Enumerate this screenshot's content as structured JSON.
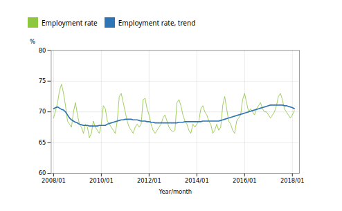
{
  "chart_data": {
    "type": "line",
    "xlabel": "Year/month",
    "ylabel": "%",
    "x": [
      2008,
      2008.0833333333333,
      2008.1666666666667,
      2008.25,
      2008.3333333333333,
      2008.4166666666667,
      2008.5,
      2008.5833333333333,
      2008.6666666666667,
      2008.75,
      2008.8333333333333,
      2008.9166666666667,
      2009,
      2009.0833333333333,
      2009.1666666666667,
      2009.25,
      2009.3333333333333,
      2009.4166666666667,
      2009.5,
      2009.5833333333333,
      2009.6666666666667,
      2009.75,
      2009.8333333333333,
      2009.9166666666667,
      2010,
      2010.0833333333333,
      2010.1666666666667,
      2010.25,
      2010.3333333333333,
      2010.4166666666667,
      2010.5,
      2010.5833333333333,
      2010.6666666666667,
      2010.75,
      2010.8333333333333,
      2010.9166666666667,
      2011,
      2011.0833333333333,
      2011.1666666666667,
      2011.25,
      2011.3333333333333,
      2011.4166666666667,
      2011.5,
      2011.5833333333333,
      2011.6666666666667,
      2011.75,
      2011.8333333333333,
      2011.9166666666667,
      2012,
      2012.0833333333333,
      2012.1666666666667,
      2012.25,
      2012.3333333333333,
      2012.4166666666667,
      2012.5,
      2012.5833333333333,
      2012.6666666666667,
      2012.75,
      2012.8333333333333,
      2012.9166666666667,
      2013,
      2013.0833333333333,
      2013.1666666666667,
      2013.25,
      2013.3333333333333,
      2013.4166666666667,
      2013.5,
      2013.5833333333333,
      2013.6666666666667,
      2013.75,
      2013.8333333333333,
      2013.9166666666667,
      2014,
      2014.0833333333333,
      2014.1666666666667,
      2014.25,
      2014.3333333333333,
      2014.4166666666667,
      2014.5,
      2014.5833333333333,
      2014.6666666666667,
      2014.75,
      2014.8333333333333,
      2014.9166666666667,
      2015,
      2015.0833333333333,
      2015.1666666666667,
      2015.25,
      2015.3333333333333,
      2015.4166666666667,
      2015.5,
      2015.5833333333333,
      2015.6666666666667,
      2015.75,
      2015.8333333333333,
      2015.9166666666667,
      2016,
      2016.0833333333333,
      2016.1666666666667,
      2016.25,
      2016.3333333333333,
      2016.4166666666667,
      2016.5,
      2016.5833333333333,
      2016.6666666666667,
      2016.75,
      2016.8333333333333,
      2016.9166666666667,
      2017,
      2017.0833333333333,
      2017.1666666666667,
      2017.25,
      2017.3333333333333,
      2017.4166666666667,
      2017.5,
      2017.5833333333333,
      2017.6666666666667,
      2017.75,
      2017.8333333333333,
      2017.9166666666667,
      2018,
      2018.0833333333333
    ],
    "series": [
      {
        "name": "Employment rate",
        "color": "#8dc63f",
        "values": [
          69.0,
          70.2,
          71.5,
          73.5,
          74.5,
          73.0,
          71.0,
          68.5,
          68.0,
          67.5,
          70.0,
          71.5,
          69.5,
          68.0,
          67.5,
          66.5,
          68.0,
          67.5,
          65.8,
          66.5,
          68.5,
          67.5,
          67.0,
          66.5,
          68.0,
          71.0,
          70.5,
          68.5,
          68.0,
          67.5,
          67.0,
          66.5,
          68.5,
          72.5,
          73.0,
          71.5,
          70.0,
          68.5,
          67.5,
          67.0,
          66.5,
          67.5,
          68.0,
          67.5,
          68.0,
          72.0,
          72.2,
          70.5,
          69.5,
          68.0,
          67.0,
          66.5,
          67.0,
          67.5,
          68.0,
          69.0,
          69.5,
          68.5,
          67.5,
          67.0,
          66.8,
          67.0,
          71.5,
          72.0,
          71.0,
          69.5,
          68.5,
          68.0,
          67.0,
          66.5,
          68.0,
          67.5,
          68.0,
          68.5,
          70.5,
          71.0,
          70.0,
          69.5,
          68.5,
          68.0,
          66.5,
          67.0,
          68.0,
          67.0,
          67.5,
          71.0,
          72.5,
          70.5,
          68.5,
          68.0,
          67.0,
          66.5,
          68.5,
          69.0,
          69.5,
          72.0,
          73.0,
          71.5,
          70.0,
          70.5,
          70.0,
          69.5,
          70.5,
          71.0,
          71.5,
          70.5,
          70.0,
          70.0,
          69.5,
          69.0,
          69.5,
          70.0,
          71.0,
          72.5,
          73.0,
          72.0,
          70.5,
          70.0,
          69.5,
          69.0,
          69.5,
          70.2
        ]
      },
      {
        "name": "Employment rate, trend",
        "color": "#2e75b6",
        "values": [
          70.5,
          70.7,
          70.8,
          70.6,
          70.4,
          70.3,
          70.0,
          69.5,
          69.0,
          68.7,
          68.5,
          68.3,
          68.2,
          68.0,
          67.9,
          67.8,
          67.8,
          67.8,
          67.7,
          67.7,
          67.7,
          67.7,
          67.7,
          67.8,
          67.8,
          67.8,
          67.8,
          68.0,
          68.1,
          68.2,
          68.3,
          68.4,
          68.5,
          68.6,
          68.7,
          68.7,
          68.8,
          68.8,
          68.8,
          68.8,
          68.7,
          68.7,
          68.7,
          68.6,
          68.5,
          68.5,
          68.5,
          68.4,
          68.4,
          68.3,
          68.3,
          68.2,
          68.2,
          68.2,
          68.2,
          68.2,
          68.2,
          68.2,
          68.2,
          68.2,
          68.2,
          68.2,
          68.2,
          68.3,
          68.3,
          68.3,
          68.4,
          68.4,
          68.4,
          68.4,
          68.4,
          68.4,
          68.4,
          68.4,
          68.4,
          68.5,
          68.5,
          68.5,
          68.5,
          68.5,
          68.5,
          68.5,
          68.5,
          68.5,
          68.6,
          68.7,
          68.8,
          68.9,
          69.0,
          69.1,
          69.2,
          69.3,
          69.4,
          69.5,
          69.6,
          69.7,
          69.8,
          69.9,
          70.0,
          70.1,
          70.2,
          70.3,
          70.4,
          70.5,
          70.6,
          70.7,
          70.8,
          70.9,
          71.0,
          71.1,
          71.1,
          71.1,
          71.1,
          71.1,
          71.1,
          71.1,
          71.0,
          71.0,
          70.9,
          70.8,
          70.7,
          70.5
        ]
      }
    ],
    "xlim": [
      2007.9,
      2018.3
    ],
    "xticks": [
      {
        "value": 2008.0,
        "label": "2008/01"
      },
      {
        "value": 2010.0,
        "label": "2010/01"
      },
      {
        "value": 2012.0,
        "label": "2012/01"
      },
      {
        "value": 2014.0,
        "label": "2014/01"
      },
      {
        "value": 2016.0,
        "label": "2016/01"
      },
      {
        "value": 2018.0,
        "label": "2018/01"
      }
    ],
    "ylim": [
      60,
      80
    ],
    "yticks": [
      60,
      65,
      70,
      75,
      80
    ],
    "grid": true,
    "legend": "upper left"
  }
}
